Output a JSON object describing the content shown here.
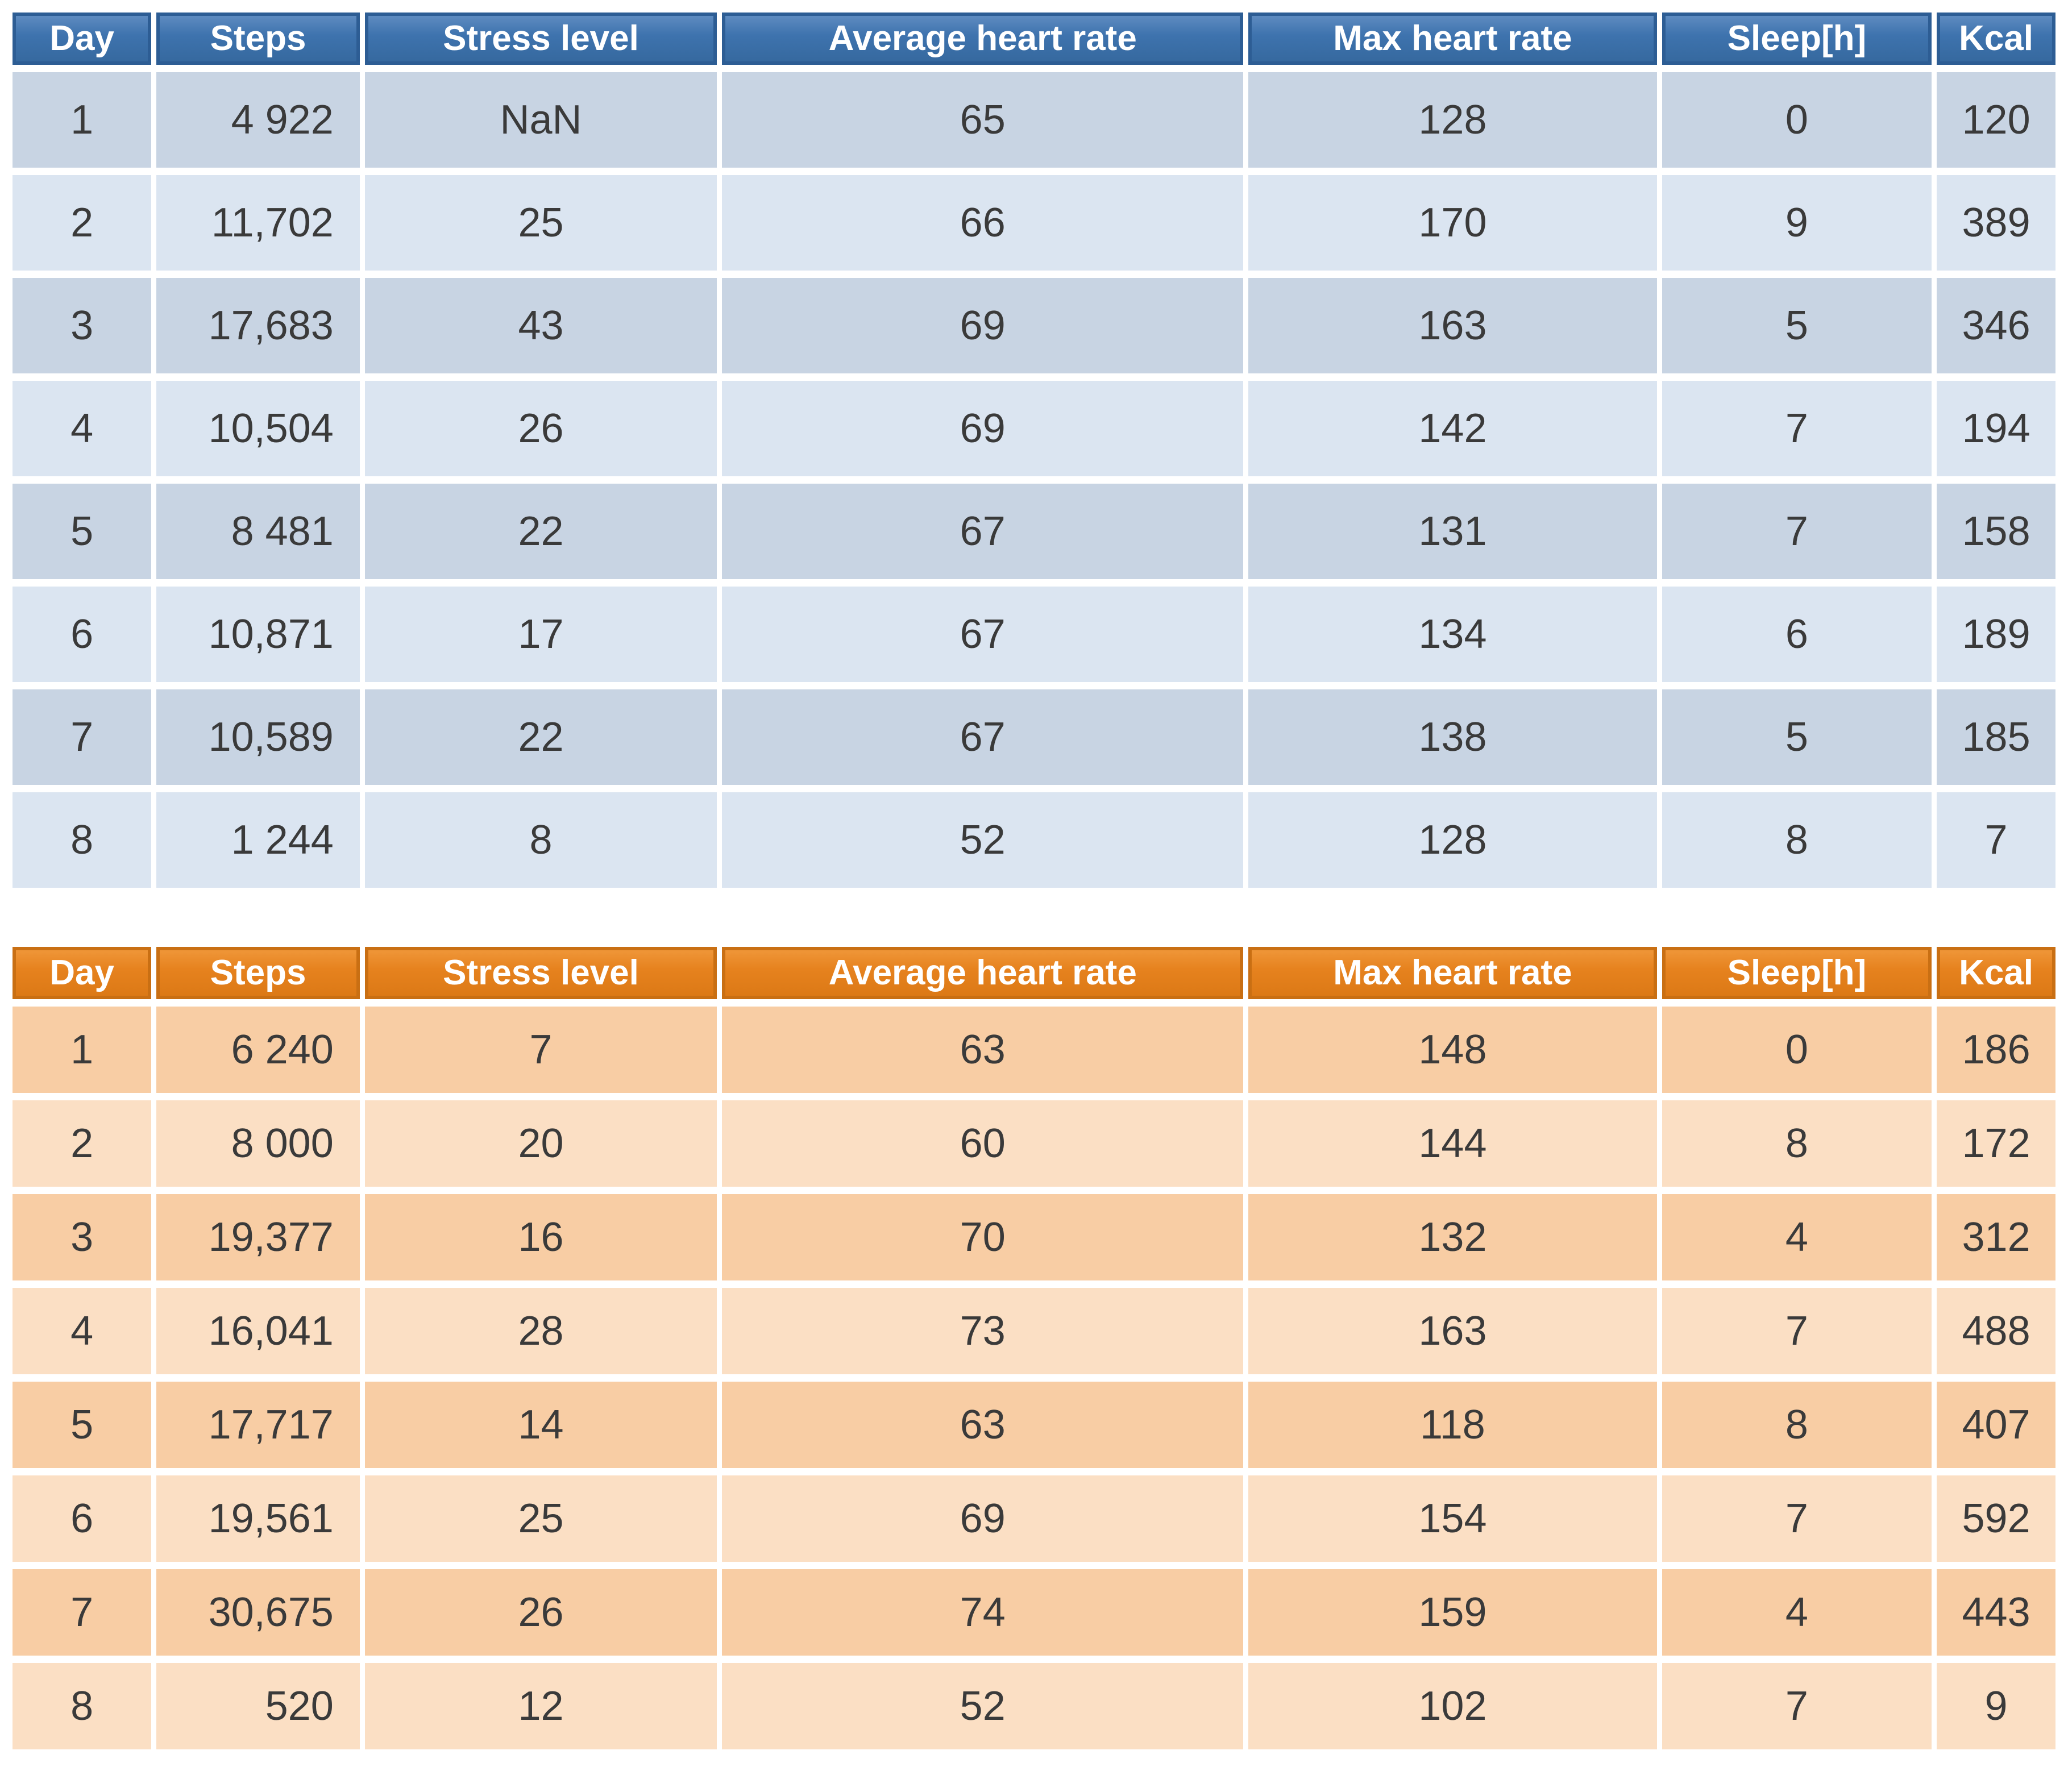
{
  "page": {
    "background": "#FFFFFF"
  },
  "chart_data": [
    {
      "type": "table",
      "name": "weekly-health-stats-blue",
      "legend_position": "none",
      "grid": "white-separators",
      "theme": {
        "header_bg": "#3E73AE",
        "header_bg_top": "#5E8BC0",
        "header_bg_bottom": "#36699F",
        "header_border": "#2D5D94",
        "header_text": "#FFFFFF",
        "row_odd": "#C8D4E3",
        "row_even": "#DBE5F1",
        "text": "#3A3A3A"
      },
      "columns": [
        "Day",
        "Steps",
        "Stress level",
        "Average heart rate",
        "Max heart rate",
        "Sleep[h]",
        "Kcal"
      ],
      "rows": [
        [
          "1",
          "4 922",
          "NaN",
          "65",
          "128",
          "0",
          "120"
        ],
        [
          "2",
          "11,702",
          "25",
          "66",
          "170",
          "9",
          "389"
        ],
        [
          "3",
          "17,683",
          "43",
          "69",
          "163",
          "5",
          "346"
        ],
        [
          "4",
          "10,504",
          "26",
          "69",
          "142",
          "7",
          "194"
        ],
        [
          "5",
          "8 481",
          "22",
          "67",
          "131",
          "7",
          "158"
        ],
        [
          "6",
          "10,871",
          "17",
          "67",
          "134",
          "6",
          "189"
        ],
        [
          "7",
          "10,589",
          "22",
          "67",
          "138",
          "5",
          "185"
        ],
        [
          "8",
          "1 244",
          "8",
          "52",
          "128",
          "8",
          "7"
        ]
      ]
    },
    {
      "type": "table",
      "name": "weekly-health-stats-orange",
      "legend_position": "none",
      "grid": "white-separators",
      "theme": {
        "header_bg": "#E6821E",
        "header_bg_top": "#EF9638",
        "header_bg_bottom": "#DC7916",
        "header_border": "#C96F13",
        "header_text": "#FFFFFF",
        "row_odd": "#F8CDA4",
        "row_even": "#FBDFC4",
        "text": "#3A3A3A"
      },
      "columns": [
        "Day",
        "Steps",
        "Stress level",
        "Average heart rate",
        "Max heart rate",
        "Sleep[h]",
        "Kcal"
      ],
      "rows": [
        [
          "1",
          "6 240",
          "7",
          "63",
          "148",
          "0",
          "186"
        ],
        [
          "2",
          "8 000",
          "20",
          "60",
          "144",
          "8",
          "172"
        ],
        [
          "3",
          "19,377",
          "16",
          "70",
          "132",
          "4",
          "312"
        ],
        [
          "4",
          "16,041",
          "28",
          "73",
          "163",
          "7",
          "488"
        ],
        [
          "5",
          "17,717",
          "14",
          "63",
          "118",
          "8",
          "407"
        ],
        [
          "6",
          "19,561",
          "25",
          "69",
          "154",
          "7",
          "592"
        ],
        [
          "7",
          "30,675",
          "26",
          "74",
          "159",
          "4",
          "443"
        ],
        [
          "8",
          "520",
          "12",
          "52",
          "102",
          "7",
          "9"
        ]
      ]
    }
  ]
}
